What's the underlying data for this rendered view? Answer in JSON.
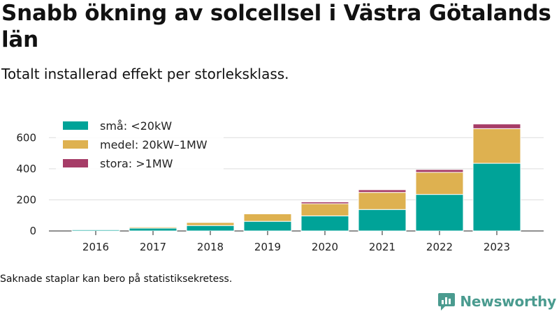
{
  "title": "Snabb ökning av solcellsel i Västra Götalands län",
  "subtitle": "Totalt installerad effekt per storleksklass.",
  "footnote": "Saknade staplar kan bero på statistiksekretess.",
  "brand": {
    "name": "Newsworthy",
    "icon": "newsworthy-logo-icon"
  },
  "colors": {
    "small": "#00a398",
    "medium": "#deb150",
    "large": "#a63c67",
    "grid": "#dddddd"
  },
  "chart_data": {
    "type": "bar",
    "stacked": true,
    "title": "Snabb ökning av solcellsel i Västra Götalands län",
    "subtitle": "Totalt installerad effekt per storleksklass.",
    "categories": [
      "2016",
      "2017",
      "2018",
      "2019",
      "2020",
      "2021",
      "2022",
      "2023"
    ],
    "series": [
      {
        "name": "små: <20kW",
        "color": "#00a398",
        "values": [
          8,
          18,
          35,
          62,
          97,
          138,
          235,
          435
        ]
      },
      {
        "name": "medel: 20kW–1MW",
        "color": "#deb150",
        "values": [
          2,
          8,
          20,
          48,
          78,
          110,
          142,
          223
        ]
      },
      {
        "name": "stora: >1MW",
        "color": "#a63c67",
        "values": [
          0,
          2,
          2,
          3,
          12,
          17,
          18,
          30
        ]
      }
    ],
    "yticks": [
      0,
      200,
      400,
      600
    ],
    "ylim": [
      0,
      700
    ],
    "xlabel": "",
    "ylabel": "",
    "grid": true,
    "legend_position": "top-left"
  }
}
